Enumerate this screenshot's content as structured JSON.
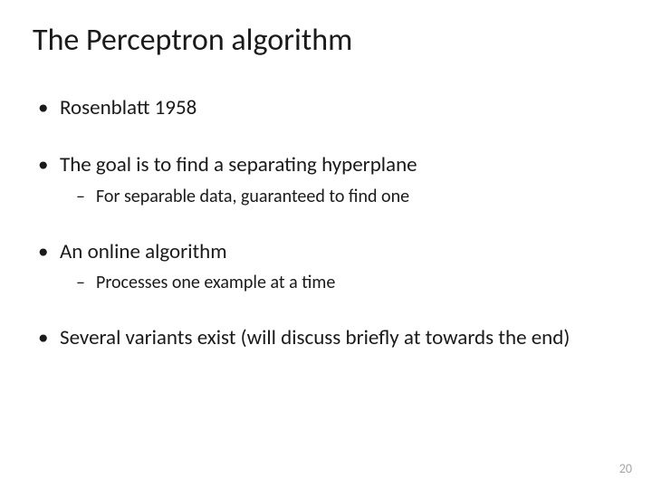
{
  "title": "The Perceptron algorithm",
  "bullets": {
    "b0": {
      "text": "Rosenblatt 1958"
    },
    "b1": {
      "text": "The goal is to find a separating hyperplane",
      "sub0": "For separable data, guaranteed to find one"
    },
    "b2": {
      "text": "An online algorithm",
      "sub0": "Processes one example at a time"
    },
    "b3": {
      "text": "Several variants exist (will discuss briefly at towards the end)"
    }
  },
  "page_number": "20",
  "colors": {
    "background": "#ffffff",
    "text": "#1a1a1a",
    "page_num": "#a6a6a6"
  },
  "fonts": {
    "title_size_pt": 34,
    "bullet_size_pt": 23,
    "sub_size_pt": 20,
    "page_num_size_pt": 14,
    "family": "Calibri"
  }
}
